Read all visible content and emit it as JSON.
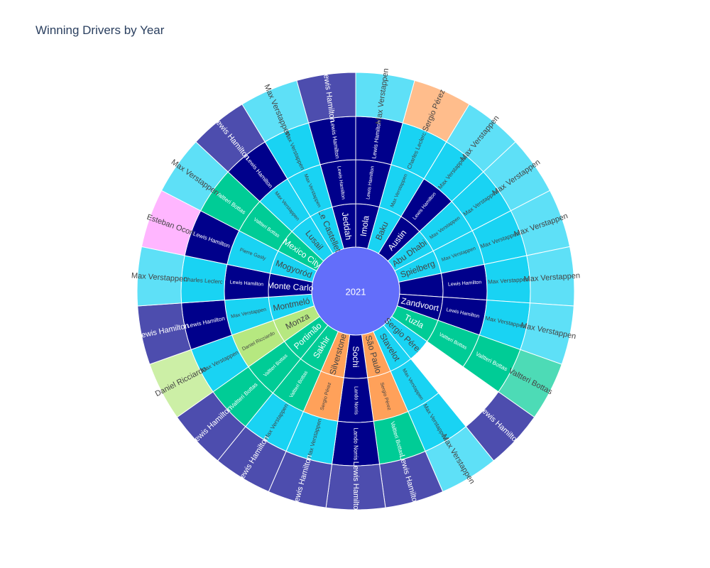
{
  "chart_data": {
    "type": "sunburst",
    "title": "Winning Drivers by Year",
    "root": "2021",
    "levels": [
      "Race",
      "Driver",
      "Driver",
      "Driver"
    ],
    "colors": {
      "root": "#636efa",
      "Max Verstappen": "#19d3f3",
      "Lewis Hamilton": "#00008b",
      "Valtteri Bottas": "#00cc96",
      "Sergio Pérez": "#ffa15a",
      "Esteban Ocon": "#ff97ff",
      "Daniel Ricciardo": "#b6e880",
      "Lando Norris": "#00008b"
    },
    "races": [
      {
        "race": "Imola",
        "winners": [
          "Lewis Hamilton",
          "Lewis Hamilton",
          "Max Verstappen"
        ]
      },
      {
        "race": "Baku",
        "winners": [
          "Max Verstappen",
          "Charles Leclerc",
          "Sergio Pérez"
        ]
      },
      {
        "race": "Austin",
        "winners": [
          "Lewis Hamilton",
          "Max Verstappen",
          "Max Verstappen"
        ]
      },
      {
        "race": "Abu Dhabi",
        "winners": [
          "Max Verstappen",
          "Max Verstappen",
          "Max Verstappen"
        ]
      },
      {
        "race": "Spielberg",
        "winners": [
          "Max Verstappen",
          "Max Verstappen",
          "Max Verstappen"
        ]
      },
      {
        "race": "",
        "winners": [
          "Lewis Hamilton",
          "Max Verstappen",
          "Max Verstappen"
        ]
      },
      {
        "race": "Zandvoort",
        "winners": [
          "Lewis Hamilton",
          "Max Verstappen",
          "Max Verstappen"
        ]
      },
      {
        "race": "Tuzla",
        "winners": [
          "Valtteri Bottas",
          "Valtteri Bottas",
          "Valtteri Bottas"
        ]
      },
      {
        "race": "Sergio Pérez",
        "winners": [
          "",
          "",
          "Lewis Hamilton"
        ]
      },
      {
        "race": "Stavelot",
        "winners": [
          "Max Verstappen",
          "Max Verstappen",
          "Max Verstappen"
        ]
      },
      {
        "race": "São Paulo",
        "winners": [
          "Sergio Pérez",
          "Valtteri Bottas",
          "Lewis Hamilton"
        ]
      },
      {
        "race": "Sochi",
        "winners": [
          "Lando Norris",
          "Lando Norris",
          "Lewis Hamilton"
        ]
      },
      {
        "race": "Silverstone",
        "winners": [
          "Sergio Pérez",
          "Max Verstappen",
          "Lewis Hamilton"
        ]
      },
      {
        "race": "Sakhir",
        "winners": [
          "Valtteri Bottas",
          "Max Verstappen",
          "Lewis Hamilton"
        ]
      },
      {
        "race": "Portimão",
        "winners": [
          "Valtteri Bottas",
          "Valtteri Bottas",
          "Lewis Hamilton"
        ]
      },
      {
        "race": "Monza",
        "winners": [
          "Daniel Ricciardo",
          "Max Verstappen",
          "Daniel Ricciardo"
        ]
      },
      {
        "race": "Montmeló",
        "winners": [
          "Max Verstappen",
          "Lewis Hamilton",
          "Lewis Hamilton"
        ]
      },
      {
        "race": "Monte Carlo",
        "winners": [
          "Lewis Hamilton",
          "Charles Leclerc",
          "Max Verstappen"
        ]
      },
      {
        "race": "Mogyoród",
        "winners": [
          "Pierre Gasly",
          "Lewis Hamilton",
          "Esteban Ocon"
        ]
      },
      {
        "race": "Mexico City",
        "winners": [
          "Valtteri Bottas",
          "Valtteri Bottas",
          "Max Verstappen"
        ]
      },
      {
        "race": "Lusail",
        "winners": [
          "Max Verstappen",
          "Lewis Hamilton",
          "Lewis Hamilton"
        ]
      },
      {
        "race": "Le Castellet",
        "winners": [
          "Max Verstappen",
          "Max Verstappen",
          "Max Verstappen"
        ]
      },
      {
        "race": "Jeddah",
        "winners": [
          "Lewis Hamilton",
          "Lewis Hamilton",
          "Lewis Hamilton"
        ]
      }
    ]
  }
}
